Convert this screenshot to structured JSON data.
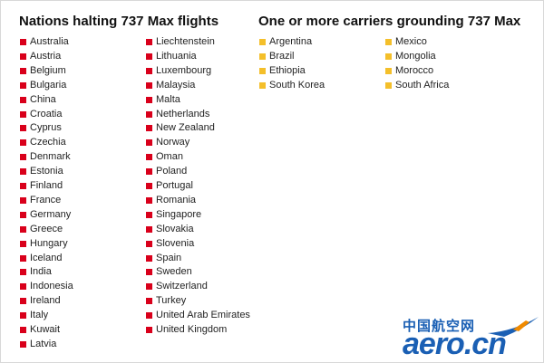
{
  "sections": [
    {
      "title": "Nations halting 737 Max flights",
      "color": "#d9001b",
      "columns": [
        [
          "Australia",
          "Austria",
          "Belgium",
          "Bulgaria",
          "China",
          "Croatia",
          "Cyprus",
          "Czechia",
          "Denmark",
          "Estonia",
          "Finland",
          "France",
          "Germany",
          "Greece",
          "Hungary",
          "Iceland",
          "India",
          "Indonesia",
          "Ireland",
          "Italy",
          "Kuwait",
          "Latvia"
        ],
        [
          "Liechtenstein",
          "Lithuania",
          "Luxembourg",
          "Malaysia",
          "Malta",
          "Netherlands",
          "New Zealand",
          "Norway",
          "Oman",
          "Poland",
          "Portugal",
          "Romania",
          "Singapore",
          "Slovakia",
          "Slovenia",
          "Spain",
          "Sweden",
          "Switzerland",
          "Turkey",
          "United Arab Emirates",
          "United Kingdom"
        ]
      ]
    },
    {
      "title": "One or more carriers grounding 737 Max",
      "color": "#f4bf2a",
      "columns": [
        [
          "Argentina",
          "Brazil",
          "Ethiopia",
          "South Korea"
        ],
        [
          "Mexico",
          "Mongolia",
          "Morocco",
          "South Africa"
        ]
      ]
    }
  ],
  "watermark": {
    "chinese": "中国航空网",
    "latin": "aero.cn"
  }
}
